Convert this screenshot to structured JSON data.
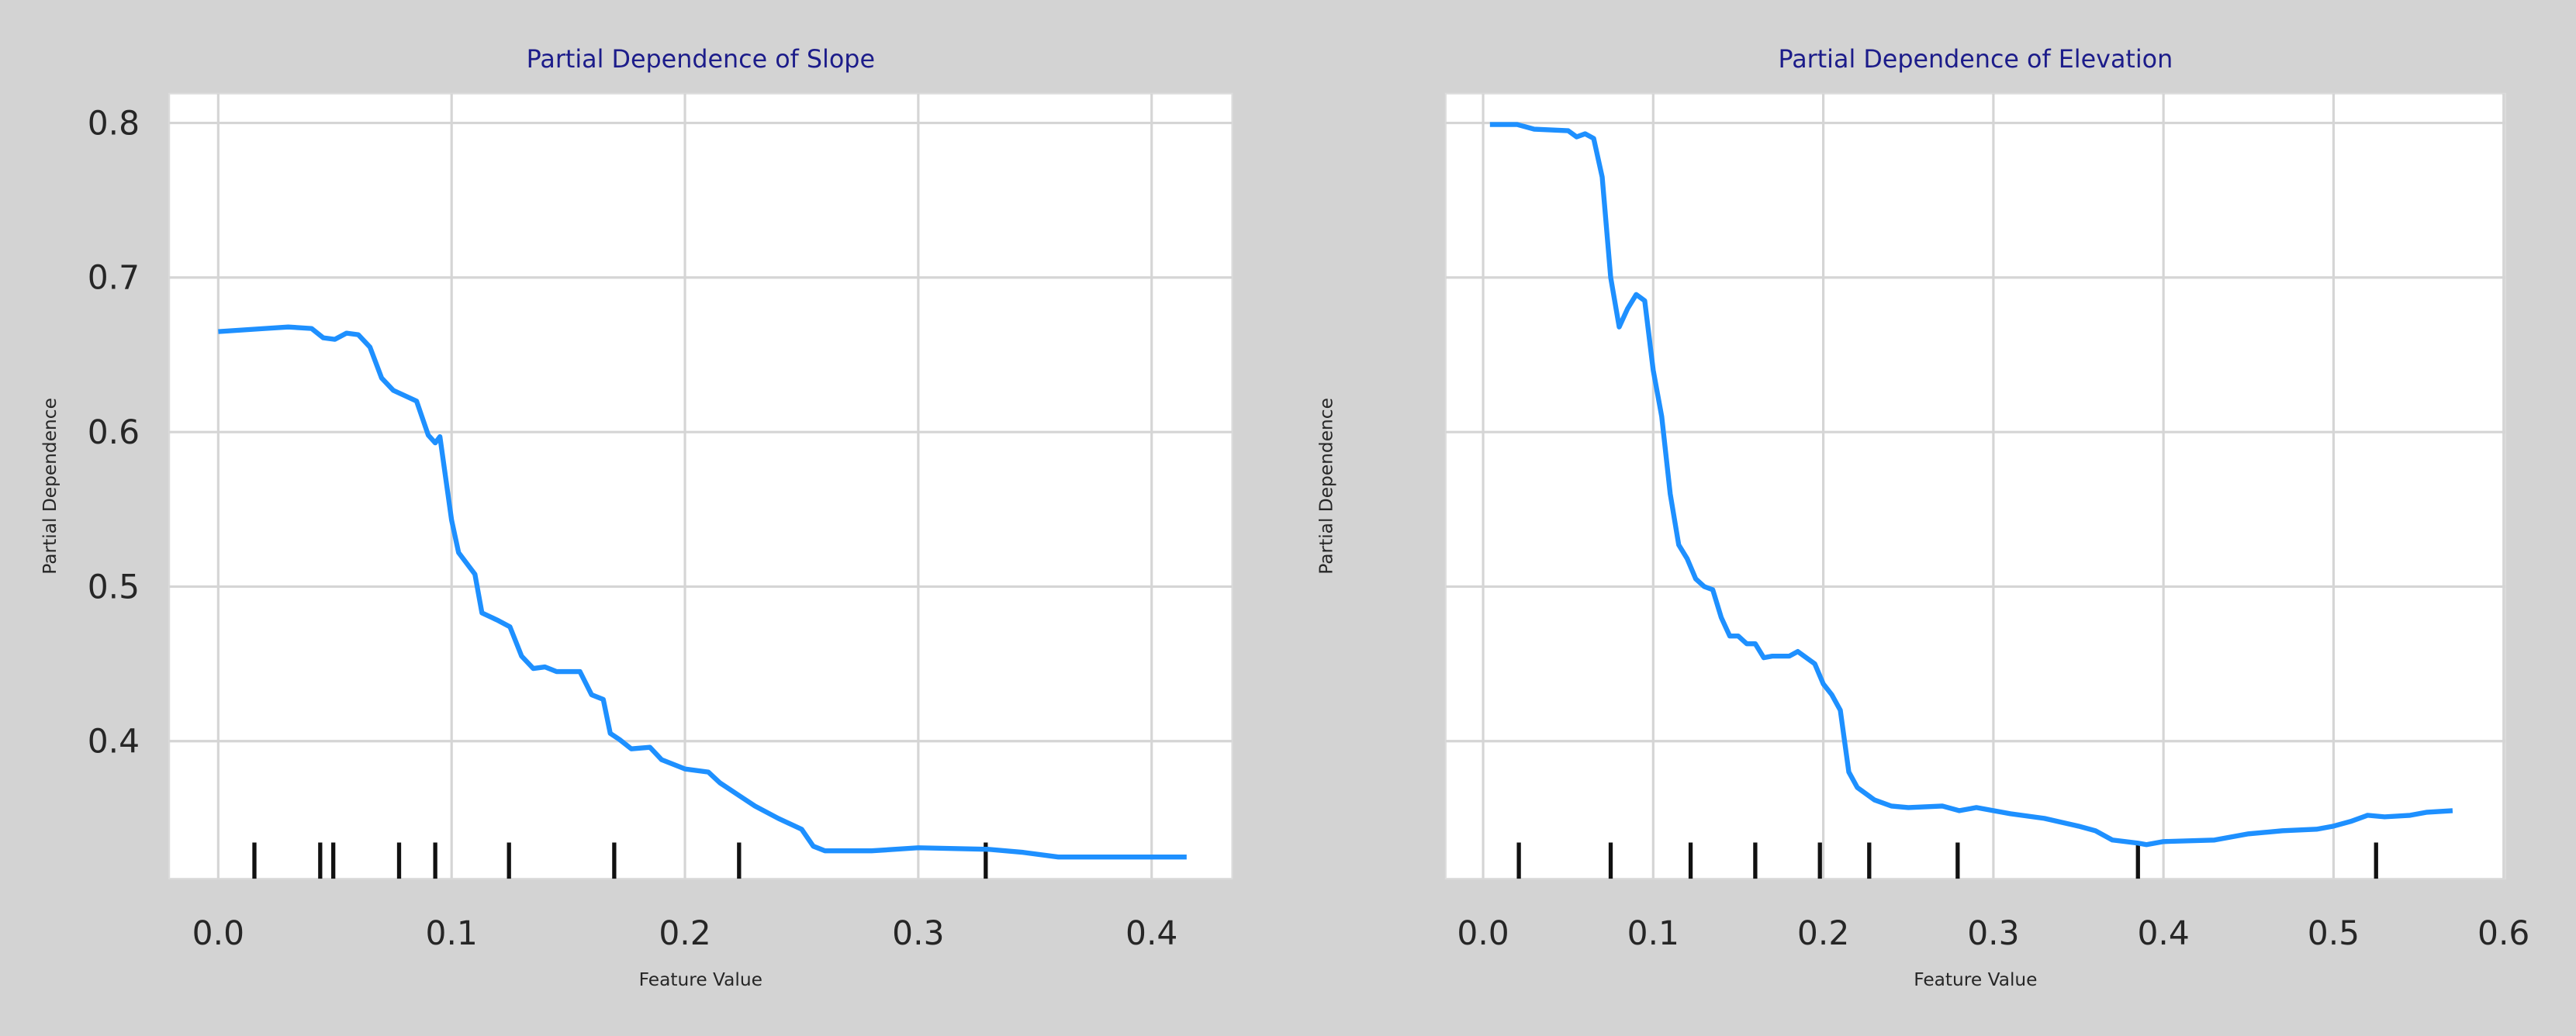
{
  "chart_data": [
    {
      "type": "line",
      "title": "Partial Dependence of Slope",
      "xlabel": "Feature Value",
      "ylabel": "Partial Dependence",
      "x": [
        0.0,
        0.01,
        0.02,
        0.03,
        0.04,
        0.045,
        0.05,
        0.055,
        0.06,
        0.065,
        0.07,
        0.075,
        0.085,
        0.09,
        0.093,
        0.095,
        0.1,
        0.103,
        0.11,
        0.113,
        0.12,
        0.125,
        0.13,
        0.135,
        0.14,
        0.145,
        0.155,
        0.16,
        0.165,
        0.168,
        0.172,
        0.177,
        0.185,
        0.19,
        0.2,
        0.21,
        0.215,
        0.225,
        0.23,
        0.24,
        0.25,
        0.255,
        0.26,
        0.28,
        0.3,
        0.33,
        0.345,
        0.36,
        0.415
      ],
      "values": [
        0.665,
        0.666,
        0.667,
        0.668,
        0.667,
        0.661,
        0.66,
        0.664,
        0.663,
        0.655,
        0.635,
        0.627,
        0.62,
        0.598,
        0.593,
        0.597,
        0.543,
        0.522,
        0.508,
        0.483,
        0.478,
        0.474,
        0.455,
        0.447,
        0.448,
        0.445,
        0.445,
        0.43,
        0.427,
        0.405,
        0.401,
        0.395,
        0.396,
        0.388,
        0.382,
        0.38,
        0.373,
        0.363,
        0.358,
        0.35,
        0.343,
        0.332,
        0.329,
        0.329,
        0.331,
        0.33,
        0.328,
        0.325,
        0.325
      ],
      "color": "#1e90ff",
      "rug": [
        0.0155,
        0.0437,
        0.0493,
        0.0775,
        0.093,
        0.1246,
        0.1697,
        0.2232,
        0.3289
      ],
      "xlim": [
        -0.021,
        0.4345
      ],
      "ylim": [
        0.311,
        0.819
      ],
      "xticks": [
        {
          "value": 0,
          "label": "0.0"
        },
        0.1,
        0.2,
        0.3,
        0.4
      ],
      "yticks": [
        0.4,
        0.5,
        0.6,
        0.7,
        0.8
      ],
      "show_ytick_labels": true,
      "grid": true
    },
    {
      "type": "line",
      "title": "Partial Dependence of Elevation",
      "xlabel": "Feature Value",
      "ylabel": "Partial Dependence",
      "x": [
        0.004,
        0.02,
        0.03,
        0.05,
        0.055,
        0.06,
        0.065,
        0.07,
        0.075,
        0.08,
        0.085,
        0.09,
        0.095,
        0.1,
        0.105,
        0.11,
        0.115,
        0.12,
        0.125,
        0.13,
        0.135,
        0.14,
        0.145,
        0.15,
        0.155,
        0.16,
        0.165,
        0.17,
        0.18,
        0.185,
        0.195,
        0.2,
        0.205,
        0.21,
        0.215,
        0.22,
        0.23,
        0.24,
        0.25,
        0.27,
        0.28,
        0.29,
        0.31,
        0.33,
        0.35,
        0.36,
        0.37,
        0.385,
        0.39,
        0.4,
        0.43,
        0.45,
        0.47,
        0.49,
        0.5,
        0.51,
        0.52,
        0.53,
        0.545,
        0.555,
        0.57
      ],
      "values": [
        0.799,
        0.799,
        0.796,
        0.795,
        0.791,
        0.793,
        0.79,
        0.765,
        0.7,
        0.668,
        0.68,
        0.689,
        0.685,
        0.64,
        0.61,
        0.56,
        0.527,
        0.518,
        0.505,
        0.5,
        0.498,
        0.48,
        0.468,
        0.468,
        0.463,
        0.463,
        0.454,
        0.455,
        0.455,
        0.458,
        0.45,
        0.437,
        0.43,
        0.42,
        0.38,
        0.37,
        0.362,
        0.358,
        0.357,
        0.358,
        0.355,
        0.357,
        0.353,
        0.35,
        0.345,
        0.342,
        0.336,
        0.334,
        0.333,
        0.335,
        0.336,
        0.34,
        0.342,
        0.343,
        0.345,
        0.348,
        0.352,
        0.351,
        0.352,
        0.354,
        0.355
      ],
      "color": "#1e90ff",
      "rug": [
        0.021,
        0.075,
        0.122,
        0.16,
        0.198,
        0.227,
        0.279,
        0.385,
        0.525
      ],
      "xlim": [
        -0.022,
        0.601
      ],
      "ylim": [
        0.311,
        0.819
      ],
      "xticks": [
        {
          "value": 0,
          "label": "0.0"
        },
        0.1,
        0.2,
        0.3,
        0.4,
        0.5,
        0.6
      ],
      "yticks": [
        0.4,
        0.5,
        0.6,
        0.7,
        0.8
      ],
      "show_ytick_labels": false,
      "grid": true
    }
  ]
}
